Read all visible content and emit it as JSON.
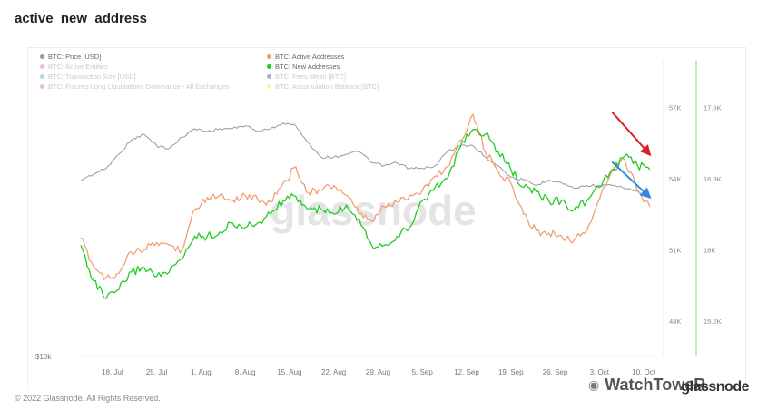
{
  "title": "active_new_address",
  "legend": {
    "items": [
      {
        "label": "BTC: Price [USD]",
        "color": "#999999",
        "faded": false
      },
      {
        "label": "BTC: Active Addresses",
        "color": "#f0a072",
        "faded": false
      },
      {
        "label": "BTC: Active Entities",
        "color": "#e040a0",
        "faded": true
      },
      {
        "label": "BTC: New Addresses",
        "color": "#22cc22",
        "faded": false
      },
      {
        "label": "BTC: Transaction Size [USD]",
        "color": "#2288dd",
        "faded": true
      },
      {
        "label": "BTC: Fees Mean [BTC]",
        "color": "#1a1a8a",
        "faded": true
      },
      {
        "label": "BTC: Futures Long Liquidations Dominance - All Exchanges",
        "color": "#cc22cc",
        "faded": true
      },
      {
        "label": "BTC: Accumulation Balance [BTC]",
        "color": "#e6e622",
        "faded": true
      }
    ]
  },
  "footer": "© 2022 Glassnode. All Rights Reserved.",
  "brand": "glassnode",
  "watermark_text": "WatchToweR",
  "watermark_icon": "wechat-icon",
  "chart_watermark": "glassnode",
  "chart_data": {
    "type": "line",
    "x_labels": [
      "18. Jul",
      "25. Jul",
      "1. Aug",
      "8. Aug",
      "15. Aug",
      "22. Aug",
      "29. Aug",
      "5. Sep",
      "12. Sep",
      "19. Sep",
      "26. Sep",
      "3. Oct",
      "10. Oct"
    ],
    "x_range": [
      "2022-07-13",
      "2022-10-12"
    ],
    "left_axis": {
      "label_bottom": "$10k",
      "range": [
        0,
        1
      ]
    },
    "axis_middle": {
      "ticks": [
        "48K",
        "51K",
        "54K",
        "57K"
      ],
      "range": [
        46500,
        58500
      ]
    },
    "axis_right": {
      "ticks": [
        "15.2K",
        "16K",
        "16.8K",
        "17.6K"
      ],
      "range": [
        14800,
        18000
      ]
    },
    "series": [
      {
        "name": "BTC: Price [USD]",
        "axis": "left",
        "color": "#999999",
        "x": [
          "2022-07-13",
          "2022-07-15",
          "2022-07-17",
          "2022-07-19",
          "2022-07-21",
          "2022-07-23",
          "2022-07-25",
          "2022-07-27",
          "2022-07-29",
          "2022-07-31",
          "2022-08-02",
          "2022-08-04",
          "2022-08-06",
          "2022-08-08",
          "2022-08-10",
          "2022-08-12",
          "2022-08-14",
          "2022-08-16",
          "2022-08-18",
          "2022-08-20",
          "2022-08-22",
          "2022-08-24",
          "2022-08-26",
          "2022-08-28",
          "2022-08-30",
          "2022-09-01",
          "2022-09-03",
          "2022-09-05",
          "2022-09-07",
          "2022-09-09",
          "2022-09-11",
          "2022-09-13",
          "2022-09-15",
          "2022-09-17",
          "2022-09-19",
          "2022-09-21",
          "2022-09-23",
          "2022-09-25",
          "2022-09-27",
          "2022-09-29",
          "2022-10-01",
          "2022-10-03",
          "2022-10-05",
          "2022-10-07",
          "2022-10-09",
          "2022-10-11"
        ],
        "values": [
          0.62,
          0.64,
          0.66,
          0.71,
          0.76,
          0.78,
          0.74,
          0.73,
          0.77,
          0.8,
          0.79,
          0.8,
          0.8,
          0.81,
          0.79,
          0.8,
          0.82,
          0.81,
          0.75,
          0.7,
          0.7,
          0.71,
          0.72,
          0.68,
          0.67,
          0.68,
          0.66,
          0.66,
          0.67,
          0.72,
          0.74,
          0.74,
          0.7,
          0.67,
          0.63,
          0.62,
          0.6,
          0.62,
          0.61,
          0.59,
          0.6,
          0.6,
          0.6,
          0.59,
          0.58,
          0.56
        ]
      },
      {
        "name": "BTC: Active Addresses",
        "axis": "middle",
        "color": "#f0a072",
        "x": [
          "2022-07-13",
          "2022-07-15",
          "2022-07-17",
          "2022-07-19",
          "2022-07-21",
          "2022-07-23",
          "2022-07-25",
          "2022-07-27",
          "2022-07-29",
          "2022-07-31",
          "2022-08-02",
          "2022-08-04",
          "2022-08-06",
          "2022-08-08",
          "2022-08-10",
          "2022-08-12",
          "2022-08-14",
          "2022-08-16",
          "2022-08-18",
          "2022-08-20",
          "2022-08-22",
          "2022-08-24",
          "2022-08-26",
          "2022-08-28",
          "2022-08-30",
          "2022-09-01",
          "2022-09-03",
          "2022-09-05",
          "2022-09-07",
          "2022-09-09",
          "2022-09-11",
          "2022-09-13",
          "2022-09-15",
          "2022-09-17",
          "2022-09-19",
          "2022-09-21",
          "2022-09-23",
          "2022-09-25",
          "2022-09-27",
          "2022-09-29",
          "2022-10-01",
          "2022-10-03",
          "2022-10-05",
          "2022-10-07",
          "2022-10-09",
          "2022-10-11"
        ],
        "values": [
          51500,
          50300,
          49800,
          50000,
          50900,
          51000,
          51300,
          51200,
          51000,
          52700,
          53200,
          53300,
          53100,
          53300,
          53100,
          53000,
          53800,
          54500,
          53400,
          53500,
          53700,
          53300,
          52500,
          52200,
          52800,
          53000,
          53300,
          53500,
          54100,
          54500,
          55600,
          56700,
          55100,
          54300,
          53800,
          52500,
          51800,
          51700,
          51600,
          51400,
          51800,
          53100,
          54300,
          54800,
          53500,
          52800
        ]
      },
      {
        "name": "BTC: New Addresses",
        "axis": "right",
        "color": "#22cc22",
        "x": [
          "2022-07-13",
          "2022-07-15",
          "2022-07-17",
          "2022-07-19",
          "2022-07-21",
          "2022-07-23",
          "2022-07-25",
          "2022-07-27",
          "2022-07-29",
          "2022-07-31",
          "2022-08-02",
          "2022-08-04",
          "2022-08-06",
          "2022-08-08",
          "2022-08-10",
          "2022-08-12",
          "2022-08-14",
          "2022-08-16",
          "2022-08-18",
          "2022-08-20",
          "2022-08-22",
          "2022-08-24",
          "2022-08-26",
          "2022-08-28",
          "2022-08-30",
          "2022-09-01",
          "2022-09-03",
          "2022-09-05",
          "2022-09-07",
          "2022-09-09",
          "2022-09-11",
          "2022-09-13",
          "2022-09-15",
          "2022-09-17",
          "2022-09-19",
          "2022-09-21",
          "2022-09-23",
          "2022-09-25",
          "2022-09-27",
          "2022-09-29",
          "2022-10-01",
          "2022-10-03",
          "2022-10-05",
          "2022-10-07",
          "2022-10-09",
          "2022-10-11"
        ],
        "values": [
          16050,
          15650,
          15450,
          15550,
          15750,
          15800,
          15700,
          15750,
          15900,
          16150,
          16150,
          16200,
          16300,
          16250,
          16300,
          16400,
          16550,
          16600,
          16450,
          16450,
          16400,
          16500,
          16350,
          16050,
          16050,
          16150,
          16250,
          16550,
          16700,
          16800,
          17150,
          17350,
          17300,
          17100,
          16900,
          16700,
          16650,
          16550,
          16550,
          16450,
          16550,
          16700,
          16900,
          17050,
          16950,
          16900
        ]
      }
    ],
    "trend_arrows": [
      {
        "color": "#e02020",
        "from": [
          "2022-10-05",
          56800
        ],
        "to": [
          "2022-10-11",
          55000
        ]
      },
      {
        "color": "#2a8ae8",
        "from": [
          "2022-10-05",
          54700
        ],
        "to": [
          "2022-10-11",
          53200
        ]
      }
    ]
  }
}
